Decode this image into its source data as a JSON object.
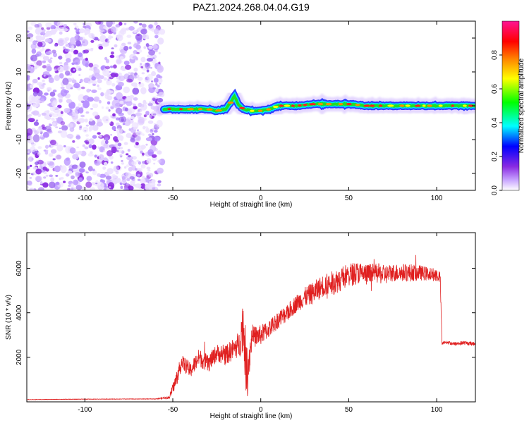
{
  "title": "PAZ1.2024.268.04.04.G19",
  "colors": {
    "snr_line": "#e02020",
    "noise_dots": "#8a2be2",
    "ridge_low": "#2b3cff",
    "ridge_mid": "#22dd22",
    "ridge_high": "#ff2020",
    "axis": "#000000"
  },
  "chart_data": [
    {
      "type": "heatmap",
      "name": "spectrogram",
      "xlabel": "Height of straight line (km)",
      "ylabel": "Frequency (Hz)",
      "xlim": [
        -133,
        122
      ],
      "ylim": [
        -25,
        25
      ],
      "x_ticks": [
        -100,
        -50,
        0,
        50,
        100
      ],
      "y_ticks": [
        -20,
        -10,
        0,
        10,
        20
      ],
      "colorbar": {
        "label": "Normalized spectral amplitude",
        "range": [
          0,
          1
        ],
        "ticks": [
          0.0,
          0.2,
          0.4,
          0.6,
          0.8
        ],
        "colormap": [
          "#ffffff",
          "#8a2be2",
          "#0000ff",
          "#00ffff",
          "#00ff00",
          "#ffff00",
          "#ff8000",
          "#ff0000",
          "#ff00aa"
        ]
      },
      "noise_region_x": [
        -133,
        -57
      ],
      "ridge": {
        "x": [
          -55,
          -50,
          -40,
          -30,
          -25,
          -20,
          -17,
          -15,
          -13,
          -10,
          -5,
          0,
          5,
          10,
          20,
          30,
          40,
          50,
          60,
          70,
          80,
          90,
          100,
          110,
          122
        ],
        "frequency_hz": [
          -1,
          -1,
          -1,
          -1,
          -1.5,
          -1,
          1,
          3,
          0.5,
          -1,
          -1.5,
          -1.5,
          -1,
          0,
          0,
          0.5,
          0.5,
          0.5,
          0,
          0,
          0,
          0,
          0,
          0,
          0
        ]
      }
    },
    {
      "type": "line",
      "name": "snr",
      "xlabel": "Height of straight line (km)",
      "ylabel": "SNR (10 * v/v)",
      "xlim": [
        -133,
        122
      ],
      "ylim": [
        0,
        7600
      ],
      "x_ticks": [
        -100,
        -50,
        0,
        50,
        100
      ],
      "y_ticks": [
        2000,
        4000,
        6000
      ],
      "series": [
        {
          "x": [
            -133,
            -100,
            -60,
            -52,
            -50,
            -48,
            -45,
            -40,
            -35,
            -30,
            -25,
            -20,
            -15,
            -12,
            -10,
            -8,
            -5,
            0,
            5,
            10,
            15,
            20,
            25,
            30,
            35,
            40,
            45,
            50,
            55,
            60,
            65,
            70,
            75,
            80,
            85,
            90,
            95,
            100,
            102,
            103,
            105,
            110,
            115,
            122
          ],
          "y": [
            100,
            120,
            130,
            200,
            600,
            1000,
            1800,
            1400,
            2000,
            1700,
            2200,
            2100,
            2400,
            2600,
            3600,
            1200,
            2900,
            3000,
            3300,
            3700,
            4000,
            4400,
            4700,
            4900,
            5200,
            5300,
            5500,
            5700,
            5800,
            5700,
            5800,
            5700,
            5800,
            5800,
            5800,
            5800,
            5750,
            5700,
            5600,
            2600,
            2700,
            2600,
            2650,
            2600
          ],
          "noise_amplitude": [
            10,
            10,
            10,
            60,
            250,
            350,
            350,
            350,
            400,
            400,
            400,
            450,
            500,
            600,
            1300,
            1300,
            500,
            450,
            400,
            400,
            400,
            400,
            450,
            500,
            500,
            550,
            550,
            550,
            500,
            500,
            450,
            450,
            400,
            400,
            400,
            350,
            300,
            300,
            300,
            80,
            90,
            90,
            90,
            90
          ]
        }
      ]
    }
  ]
}
